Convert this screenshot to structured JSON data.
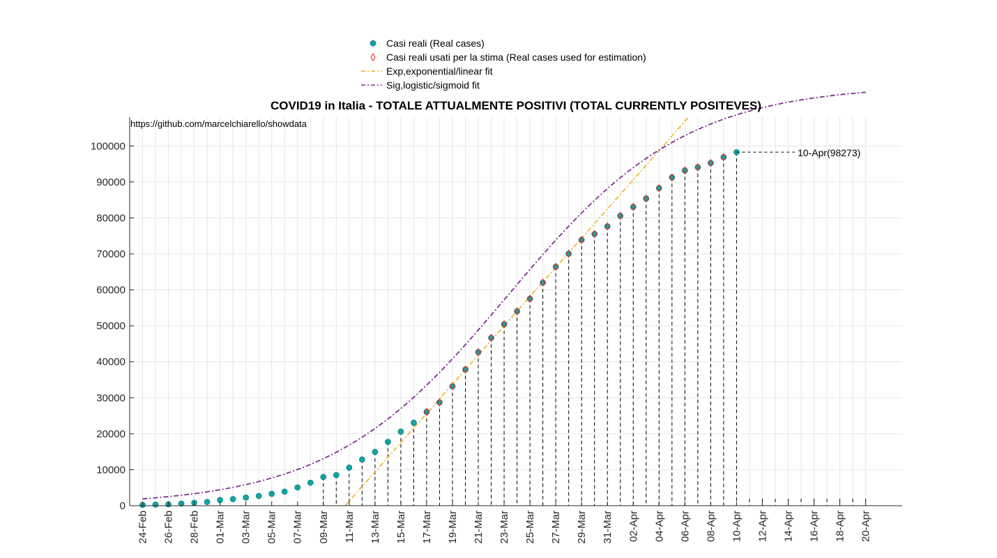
{
  "chart_data": {
    "type": "scatter",
    "title": "COVID19 in Italia - TOTALE ATTUALMENTE POSITIVI (TOTAL CURRENTLY POSITEVES)",
    "annotation_source": "https://github.com/marcelchiarello/showdata",
    "x_tick_labels": [
      "24-Feb",
      "26-Feb",
      "28-Feb",
      "01-Mar",
      "03-Mar",
      "05-Mar",
      "07-Mar",
      "09-Mar",
      "11-Mar",
      "13-Mar",
      "15-Mar",
      "17-Mar",
      "19-Mar",
      "21-Mar",
      "23-Mar",
      "25-Mar",
      "27-Mar",
      "29-Mar",
      "31-Mar",
      "02-Apr",
      "04-Apr",
      "06-Apr",
      "08-Apr",
      "10-Apr",
      "12-Apr",
      "14-Apr",
      "16-Apr",
      "18-Apr",
      "20-Apr"
    ],
    "y_tick_labels": [
      "0",
      "10000",
      "20000",
      "30000",
      "40000",
      "50000",
      "60000",
      "70000",
      "80000",
      "90000",
      "100000"
    ],
    "ylim": [
      0,
      108000
    ],
    "grid": true,
    "legend_position": "top-center",
    "colors": {
      "real": "#13a3a3",
      "used": "#e8281e",
      "exp_fit": "#edb120",
      "sig_fit": "#7e2f8e"
    },
    "dates": [
      "24-Feb",
      "25-Feb",
      "26-Feb",
      "27-Feb",
      "28-Feb",
      "29-Feb",
      "01-Mar",
      "02-Mar",
      "03-Mar",
      "04-Mar",
      "05-Mar",
      "06-Mar",
      "07-Mar",
      "08-Mar",
      "09-Mar",
      "10-Mar",
      "11-Mar",
      "12-Mar",
      "13-Mar",
      "14-Mar",
      "15-Mar",
      "16-Mar",
      "17-Mar",
      "18-Mar",
      "19-Mar",
      "20-Mar",
      "21-Mar",
      "22-Mar",
      "23-Mar",
      "24-Mar",
      "25-Mar",
      "26-Mar",
      "27-Mar",
      "28-Mar",
      "29-Mar",
      "30-Mar",
      "31-Mar",
      "01-Apr",
      "02-Apr",
      "03-Apr",
      "04-Apr",
      "05-Apr",
      "06-Apr",
      "07-Apr",
      "08-Apr",
      "09-Apr",
      "10-Apr"
    ],
    "series": [
      {
        "name": "Casi reali (Real cases)",
        "values": [
          221,
          311,
          385,
          588,
          821,
          1049,
          1577,
          1835,
          2263,
          2706,
          3296,
          3916,
          5061,
          6387,
          7985,
          8514,
          10590,
          12839,
          14955,
          17750,
          20603,
          23073,
          26062,
          28710,
          33190,
          37860,
          42681,
          46638,
          50418,
          54030,
          57521,
          62013,
          66414,
          70065,
          73880,
          75528,
          77635,
          80572,
          83049,
          85388,
          88274,
          91246,
          93187,
          94067,
          95262,
          96877,
          98273
        ]
      },
      {
        "name": "Casi reali usati per la stima (Real cases used for estimation)",
        "start_date": "17-Mar",
        "values": [
          26062,
          28710,
          33190,
          37860,
          42681,
          46638,
          50418,
          54030,
          57521,
          62013,
          66414,
          70065,
          73880,
          75528,
          77635,
          80572,
          83049,
          85388,
          88274,
          91246,
          93187,
          94067,
          95262,
          96877
        ]
      },
      {
        "name": "Exp,exponential/linear fit"
      },
      {
        "name": "Sig,logistic/sigmoid fit"
      }
    ],
    "last_point_label": "10-Apr(98273)"
  }
}
